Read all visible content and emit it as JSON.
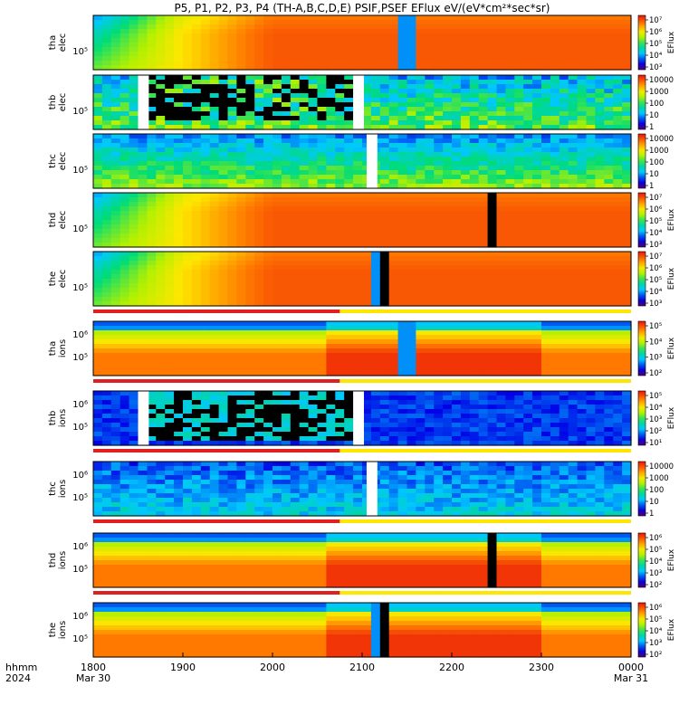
{
  "chart_data": {
    "type": "heatmap",
    "title": "P5, P1, P2, P3, P4 (TH-A,B,C,D,E) PSIF,PSEF EFlux eV/(eV*cm²*sec*sr)",
    "time_axis": {
      "label_top": "hhmm",
      "label_bottom": "2024",
      "ticks": [
        "1800",
        "1900",
        "2000",
        "2100",
        "2200",
        "2300",
        "0000"
      ],
      "tick_hours": [
        18,
        19,
        20,
        21,
        22,
        23,
        24
      ],
      "date_labels": [
        {
          "hour": 18,
          "text": "Mar 30"
        },
        {
          "hour": 24,
          "text": "Mar 31"
        }
      ],
      "range_hours": [
        18,
        24
      ]
    },
    "panels": [
      {
        "id": "tha-elec",
        "ylabel": "tha\nelec",
        "ytick": "10⁵",
        "colorbar_label": "EFlux",
        "colorbar_ticks": [
          "10⁷",
          "10⁶",
          "10⁵",
          "10⁴",
          "10³"
        ],
        "kind": "smooth",
        "gaps": [],
        "dropouts": [
          [
            21.45,
            21.58
          ]
        ],
        "indicator": false
      },
      {
        "id": "thb-elec",
        "ylabel": "thb\nelec",
        "ytick": "10⁵",
        "colorbar_label": "",
        "colorbar_ticks": [
          "10000",
          "1000",
          "100",
          "10",
          "1"
        ],
        "kind": "noisy",
        "gaps": [
          [
            18.5,
            18.62
          ],
          [
            20.9,
            21.02
          ]
        ],
        "dropouts": [],
        "indicator": false
      },
      {
        "id": "thc-elec",
        "ylabel": "thc\nelec",
        "ytick": "10⁵",
        "colorbar_label": "",
        "colorbar_ticks": [
          "10000",
          "1000",
          "100",
          "10",
          "1"
        ],
        "kind": "striped",
        "gaps": [
          [
            21.05,
            21.17
          ]
        ],
        "dropouts": [],
        "indicator": false
      },
      {
        "id": "thd-elec",
        "ylabel": "thd\nelec",
        "ytick": "10⁵",
        "colorbar_label": "EFlux",
        "colorbar_ticks": [
          "10⁷",
          "10⁶",
          "10⁵",
          "10⁴",
          "10³"
        ],
        "kind": "smooth",
        "gaps": [],
        "dropouts": [
          [
            22.38,
            22.52
          ]
        ],
        "indicator": false
      },
      {
        "id": "the-elec",
        "ylabel": "the\nelec",
        "ytick": "10⁵",
        "colorbar_label": "EFlux",
        "colorbar_ticks": [
          "10⁷",
          "10⁶",
          "10⁵",
          "10⁴",
          "10³"
        ],
        "kind": "smooth",
        "gaps": [],
        "dropouts": [
          [
            21.15,
            21.33
          ]
        ],
        "indicator": true
      },
      {
        "id": "tha-ions",
        "ylabel": "tha\nions",
        "ytick": "10⁵",
        "ytick2": "10⁶",
        "colorbar_label": "EFlux",
        "colorbar_ticks": [
          "10⁵",
          "10⁴",
          "10³",
          "10²"
        ],
        "kind": "ions",
        "gaps": [],
        "dropouts": [
          [
            21.45,
            21.58
          ]
        ],
        "indicator": true
      },
      {
        "id": "thb-ions",
        "ylabel": "thb\nions",
        "ytick": "10⁵",
        "ytick2": "10⁶",
        "colorbar_label": "EFlux",
        "colorbar_ticks": [
          "10⁵",
          "10⁴",
          "10³",
          "10²",
          "10¹"
        ],
        "kind": "noisy-ions",
        "gaps": [
          [
            18.5,
            18.62
          ],
          [
            20.9,
            21.02
          ]
        ],
        "dropouts": [],
        "indicator": true
      },
      {
        "id": "thc-ions",
        "ylabel": "thc\nions",
        "ytick": "10⁵",
        "ytick2": "10⁶",
        "colorbar_label": "",
        "colorbar_ticks": [
          "10000",
          "1000",
          "100",
          "10",
          "1"
        ],
        "kind": "striped-ions",
        "gaps": [
          [
            21.05,
            21.17
          ]
        ],
        "dropouts": [],
        "indicator": true
      },
      {
        "id": "thd-ions",
        "ylabel": "thd\nions",
        "ytick": "10⁵",
        "ytick2": "10⁶",
        "colorbar_label": "EFlux",
        "colorbar_ticks": [
          "10⁶",
          "10⁵",
          "10⁴",
          "10³",
          "10²"
        ],
        "kind": "ions",
        "gaps": [],
        "dropouts": [
          [
            22.38,
            22.52
          ]
        ],
        "indicator": true
      },
      {
        "id": "the-ions",
        "ylabel": "the\nions",
        "ytick": "10⁵",
        "ytick2": "10⁶",
        "colorbar_label": "EFlux",
        "colorbar_ticks": [
          "10⁶",
          "10⁵",
          "10⁴",
          "10³",
          "10²"
        ],
        "kind": "ions",
        "gaps": [],
        "dropouts": [
          [
            21.15,
            21.33
          ]
        ],
        "indicator": false
      }
    ]
  }
}
